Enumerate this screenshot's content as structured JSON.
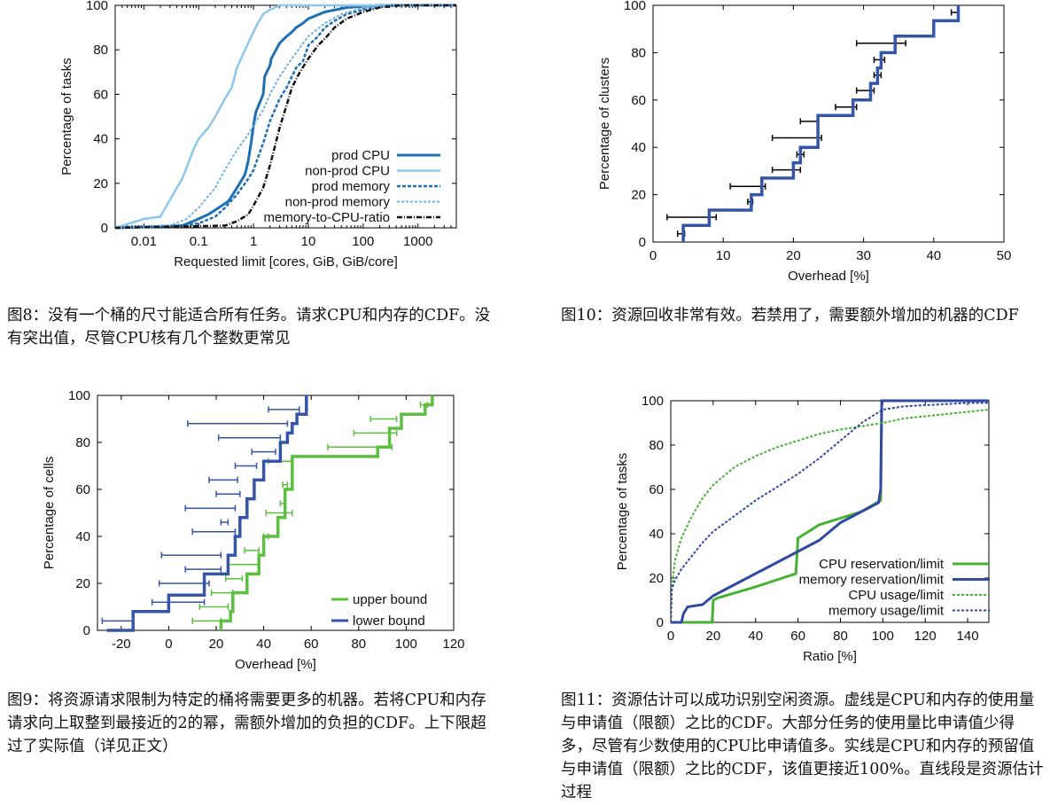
{
  "captions": {
    "fig8": "图8：没有一个桶的尺寸能适合所有任务。请求CPU和内存的CDF。没有突出值，尽管CPU核有几个整数更常见",
    "fig10": "图10：资源回收非常有效。若禁用了，需要额外增加的机器的CDF",
    "fig9": "图9：将资源请求限制为特定的桶将需要更多的机器。若将CPU和内存请求向上取整到最接近的2的幂，需额外增加的负担的CDF。上下限超过了实际值（详见正文）",
    "fig11": "图11：资源估计可以成功识别空闲资源。虚线是CPU和内存的使用量与申请值（限额）之比的CDF。大部分任务的使用量比申请值少得多，尽管有少数使用的CPU比申请值多。实线是CPU和内存的预留值与申请值（限额）之比的CDF，该值更接近100%。直线段是资源估计过程"
  },
  "chart_data": [
    {
      "id": "fig8",
      "type": "line",
      "xscale": "log",
      "xlim": [
        0.003,
        5000
      ],
      "ylim": [
        0,
        100
      ],
      "xticks": [
        0.01,
        0.1,
        1,
        10,
        100,
        1000
      ],
      "xticklabels": [
        "0.01",
        "0.1",
        "1",
        "10",
        "100",
        "1000"
      ],
      "yticks": [
        0,
        20,
        40,
        60,
        80,
        100
      ],
      "xlabel": "Requested limit [cores, GiB, GiB/core]",
      "ylabel": "Percentage of tasks",
      "legend_position": "bottom-right",
      "series": [
        {
          "name": "prod CPU",
          "color": "#1f6fb5",
          "dash": "solid",
          "width": 3,
          "x": [
            0.003,
            0.05,
            0.08,
            0.15,
            0.2,
            0.35,
            0.5,
            0.7,
            0.8,
            0.9,
            1.0,
            1.1,
            1.5,
            1.6,
            2.0,
            2.1,
            3.0,
            4.0,
            5.0,
            6.0,
            8.0,
            10,
            20,
            50,
            200,
            5000
          ],
          "y": [
            0,
            1,
            3,
            6,
            8,
            12,
            18,
            24,
            30,
            38,
            46,
            52,
            60,
            68,
            73,
            76,
            83,
            86,
            88,
            90,
            92,
            94,
            97,
            99,
            100,
            100
          ]
        },
        {
          "name": "non-prod CPU",
          "color": "#8ec7ec",
          "dash": "solid",
          "width": 2.5,
          "x": [
            0.003,
            0.01,
            0.02,
            0.04,
            0.05,
            0.08,
            0.1,
            0.15,
            0.2,
            0.3,
            0.4,
            0.5,
            0.7,
            1.0,
            1.2,
            1.5,
            2.0,
            2.5,
            3.0,
            3.5,
            5000
          ],
          "y": [
            0,
            4,
            5,
            18,
            22,
            35,
            40,
            45,
            50,
            58,
            63,
            72,
            80,
            88,
            92,
            96,
            98,
            99,
            100,
            100,
            100
          ]
        },
        {
          "name": "prod memory",
          "color": "#1f6fb5",
          "dash": "4,2",
          "width": 2.5,
          "x": [
            0.003,
            0.05,
            0.1,
            0.2,
            0.3,
            0.5,
            0.8,
            1.0,
            1.5,
            2.0,
            3.0,
            4.0,
            6.0,
            8.0,
            10,
            15,
            20,
            30,
            50,
            100,
            300,
            5000
          ],
          "y": [
            0,
            1,
            2,
            5,
            9,
            15,
            22,
            26,
            38,
            48,
            58,
            63,
            72,
            75,
            82,
            86,
            90,
            93,
            96,
            98,
            100,
            100
          ]
        },
        {
          "name": "non-prod memory",
          "color": "#6fb1e0",
          "dash": "3,2",
          "width": 2,
          "x": [
            0.003,
            0.03,
            0.06,
            0.1,
            0.2,
            0.3,
            0.5,
            0.8,
            1.0,
            1.5,
            2.0,
            3.0,
            5.0,
            8.0,
            10,
            20,
            40,
            100,
            300,
            5000
          ],
          "y": [
            0,
            1,
            4,
            9,
            18,
            26,
            35,
            42,
            46,
            53,
            60,
            68,
            76,
            83,
            86,
            92,
            96,
            99,
            100,
            100
          ]
        },
        {
          "name": "memory-to-CPU-ratio",
          "color": "#111111",
          "dash": "6,2,1,2",
          "width": 2.5,
          "x": [
            0.003,
            0.3,
            0.5,
            0.8,
            1.0,
            1.5,
            2.0,
            3.0,
            4.0,
            5.0,
            7.0,
            10,
            15,
            20,
            30,
            50,
            100,
            200,
            500,
            5000
          ],
          "y": [
            0,
            1,
            3,
            6,
            10,
            18,
            28,
            45,
            55,
            63,
            70,
            76,
            82,
            85,
            90,
            94,
            97,
            99,
            100,
            100
          ]
        }
      ]
    },
    {
      "id": "fig10",
      "type": "line",
      "xlim": [
        0,
        50
      ],
      "ylim": [
        0,
        100
      ],
      "xticks": [
        0,
        10,
        20,
        30,
        40,
        50
      ],
      "yticks": [
        0,
        20,
        40,
        60,
        80,
        100
      ],
      "xlabel": "Overhead [%]",
      "ylabel": "Percentage of clusters",
      "series": [
        {
          "name": "",
          "color": "#3555a8",
          "width": 3.5,
          "step": true,
          "x": [
            4.3,
            4.3,
            8,
            8,
            14,
            14,
            15.5,
            15.5,
            20,
            20,
            21,
            21,
            23.5,
            23.5,
            28.5,
            28.5,
            31,
            31,
            32,
            32,
            32.5,
            32.5,
            34.5,
            34.5,
            40,
            40,
            43.5,
            43.5
          ],
          "y": [
            0,
            7,
            7,
            13.5,
            13.5,
            20,
            20,
            27,
            27,
            33.5,
            33.5,
            40,
            40,
            53.5,
            53.5,
            60,
            60,
            67,
            67,
            73.5,
            73.5,
            80,
            80,
            87,
            87,
            93.5,
            93.5,
            100
          ]
        }
      ],
      "errorbars": [
        {
          "y": 3.5,
          "lo": 3.5,
          "hi": 4.5
        },
        {
          "y": 10.5,
          "lo": 2,
          "hi": 9
        },
        {
          "y": 17,
          "lo": 13.5,
          "hi": 14.2
        },
        {
          "y": 23.5,
          "lo": 11,
          "hi": 16
        },
        {
          "y": 30.5,
          "lo": 17,
          "hi": 21
        },
        {
          "y": 37,
          "lo": 20.5,
          "hi": 21.5
        },
        {
          "y": 44,
          "lo": 17,
          "hi": 24
        },
        {
          "y": 51,
          "lo": 21,
          "hi": 23.5
        },
        {
          "y": 57,
          "lo": 26,
          "hi": 29
        },
        {
          "y": 64,
          "lo": 29,
          "hi": 31.5
        },
        {
          "y": 70.5,
          "lo": 31.5,
          "hi": 32.5
        },
        {
          "y": 77,
          "lo": 31.5,
          "hi": 33
        },
        {
          "y": 84,
          "lo": 29,
          "hi": 36
        },
        {
          "y": 97,
          "lo": 42.5,
          "hi": 43.5
        }
      ]
    },
    {
      "id": "fig9",
      "type": "line",
      "xlim": [
        -30,
        120
      ],
      "ylim": [
        0,
        100
      ],
      "xticks": [
        -20,
        0,
        20,
        40,
        60,
        80,
        100,
        120
      ],
      "yticks": [
        0,
        20,
        40,
        60,
        80,
        100
      ],
      "xlabel": "Overhead [%]",
      "ylabel": "Percentage of cells",
      "legend_position": "bottom-right",
      "series": [
        {
          "name": "upper bound",
          "color": "#5cbf3f",
          "width": 3.5,
          "step": true,
          "x": [
            22,
            22,
            26,
            26,
            27,
            27,
            33,
            33,
            38,
            38,
            40,
            40,
            46,
            46,
            49,
            49,
            52,
            52,
            88,
            88,
            93,
            93,
            98,
            98,
            108,
            108,
            111,
            111
          ],
          "y": [
            0,
            4,
            4,
            8,
            8,
            16,
            16,
            24,
            24,
            32,
            32,
            40,
            40,
            48,
            48,
            60,
            60,
            74,
            74,
            78,
            78,
            86,
            86,
            92,
            92,
            96,
            96,
            100
          ]
        },
        {
          "name": "lower bound",
          "color": "#3555a8",
          "width": 3.5,
          "step": true,
          "x": [
            -26,
            -15,
            -15,
            0,
            0,
            15,
            15,
            25,
            25,
            28,
            28,
            30,
            30,
            33,
            33,
            36,
            36,
            40,
            40,
            47,
            47,
            50,
            50,
            52,
            52,
            54,
            54,
            58,
            58
          ],
          "y": [
            0,
            0,
            8,
            8,
            15,
            15,
            24,
            24,
            32,
            32,
            40,
            40,
            48,
            48,
            56,
            56,
            64,
            64,
            72,
            72,
            80,
            80,
            84,
            84,
            88,
            88,
            92,
            92,
            100
          ]
        }
      ],
      "errorbars_upper": [
        {
          "y": 4,
          "lo": 10,
          "hi": 22
        },
        {
          "y": 10,
          "lo": 13,
          "hi": 25
        },
        {
          "y": 16,
          "lo": 18,
          "hi": 27
        },
        {
          "y": 22,
          "lo": 24,
          "hi": 31
        },
        {
          "y": 28,
          "lo": 25,
          "hi": 38
        },
        {
          "y": 34,
          "lo": 32,
          "hi": 38
        },
        {
          "y": 40,
          "lo": 40,
          "hi": 42
        },
        {
          "y": 50,
          "lo": 41,
          "hi": 52
        },
        {
          "y": 54,
          "lo": 47,
          "hi": 49
        },
        {
          "y": 62,
          "lo": 48,
          "hi": 50
        },
        {
          "y": 72,
          "lo": 42,
          "hi": 52
        },
        {
          "y": 78,
          "lo": 67,
          "hi": 94
        },
        {
          "y": 84,
          "lo": 78,
          "hi": 96
        },
        {
          "y": 90,
          "lo": 85,
          "hi": 96
        },
        {
          "y": 96,
          "lo": 106,
          "hi": 109
        }
      ],
      "errorbars_lower": [
        {
          "y": 4,
          "lo": -28,
          "hi": -15
        },
        {
          "y": 12,
          "lo": -7,
          "hi": 15
        },
        {
          "y": 20,
          "lo": -4,
          "hi": 17
        },
        {
          "y": 26,
          "lo": 7,
          "hi": 22
        },
        {
          "y": 32,
          "lo": -3,
          "hi": 22
        },
        {
          "y": 42,
          "lo": 10,
          "hi": 28
        },
        {
          "y": 46,
          "lo": 22,
          "hi": 25
        },
        {
          "y": 52,
          "lo": 7,
          "hi": 28
        },
        {
          "y": 58,
          "lo": 20,
          "hi": 30
        },
        {
          "y": 64,
          "lo": 17,
          "hi": 29
        },
        {
          "y": 70,
          "lo": 28,
          "hi": 37
        },
        {
          "y": 76,
          "lo": 35,
          "hi": 45
        },
        {
          "y": 82,
          "lo": 21,
          "hi": 47
        },
        {
          "y": 88,
          "lo": 8,
          "hi": 50
        },
        {
          "y": 94,
          "lo": 42,
          "hi": 55
        }
      ]
    },
    {
      "id": "fig11",
      "type": "line",
      "xlim": [
        0,
        150
      ],
      "ylim": [
        0,
        100
      ],
      "xticks": [
        0,
        20,
        40,
        60,
        80,
        100,
        120,
        140
      ],
      "yticks": [
        0,
        20,
        40,
        60,
        80,
        100
      ],
      "xlabel": "Ratio [%]",
      "ylabel": "Percentage of tasks",
      "legend_position": "bottom-right",
      "series": [
        {
          "name": "CPU reservation/limit",
          "color": "#45b232",
          "dash": "solid",
          "width": 3,
          "x": [
            0,
            19.5,
            20,
            22,
            40,
            59,
            60,
            65,
            70,
            80,
            90,
            99,
            99.5,
            100,
            150
          ],
          "y": [
            0,
            0,
            10,
            11,
            16,
            22,
            38,
            41,
            44,
            47,
            50,
            55,
            100,
            100,
            100
          ]
        },
        {
          "name": "memory reservation/limit",
          "color": "#2f4aa0",
          "dash": "solid",
          "width": 3,
          "x": [
            0,
            5,
            6,
            8,
            15,
            20,
            30,
            40,
            50,
            60,
            70,
            80,
            90,
            98,
            99,
            99.5,
            100,
            150
          ],
          "y": [
            0,
            0,
            4,
            7,
            8,
            12,
            17,
            22,
            27,
            32,
            37,
            45,
            50,
            54,
            60,
            100,
            100,
            100
          ]
        },
        {
          "name": "CPU usage/limit",
          "color": "#45b232",
          "dash": "3,2",
          "width": 2,
          "x": [
            0,
            0.5,
            1,
            2,
            5,
            10,
            15,
            20,
            30,
            40,
            50,
            60,
            70,
            80,
            90,
            100,
            110,
            120,
            130,
            140,
            150
          ],
          "y": [
            0,
            14,
            20,
            28,
            38,
            48,
            56,
            62,
            70,
            75,
            79,
            82,
            85,
            87,
            88.5,
            90,
            92,
            93,
            94,
            95,
            96
          ]
        },
        {
          "name": "memory usage/limit",
          "color": "#2f4aa0",
          "dash": "3,2",
          "width": 2,
          "x": [
            0,
            0.5,
            2,
            5,
            10,
            15,
            20,
            30,
            40,
            50,
            60,
            70,
            80,
            90,
            100,
            110,
            120,
            130,
            140,
            150
          ],
          "y": [
            0,
            15,
            19,
            24,
            30,
            36,
            41,
            48,
            55,
            61,
            67,
            74,
            82,
            90,
            96,
            97.5,
            98,
            98.5,
            99,
            99
          ]
        }
      ]
    }
  ]
}
